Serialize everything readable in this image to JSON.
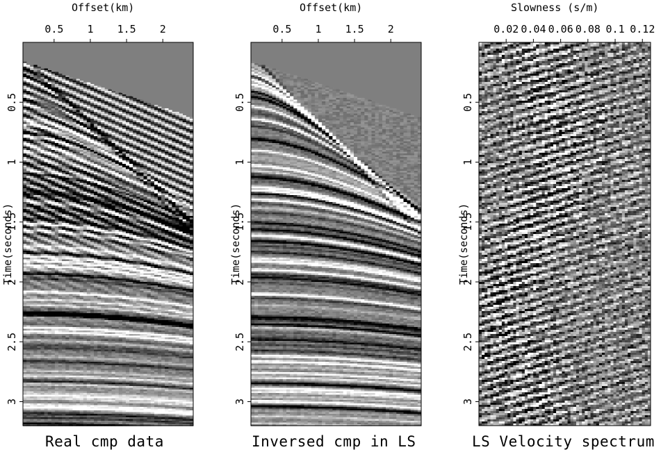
{
  "chart_data": [
    {
      "type": "heatmap",
      "title": "Real cmp data",
      "xlabel": "Offset(km)",
      "ylabel": "Time(seconds)",
      "x_ticks": [
        "0.5",
        "1",
        "1.5",
        "2"
      ],
      "x_tick_values": [
        0.5,
        1,
        1.5,
        2
      ],
      "y_ticks": [
        "0.5",
        "1",
        "1.5",
        "2",
        "2.5",
        "3"
      ],
      "y_tick_values": [
        0.5,
        1,
        1.5,
        2,
        2.5,
        3
      ],
      "xlim": [
        0.07,
        2.42
      ],
      "ylim": [
        0.0,
        3.2
      ],
      "colormap": "grayscale seismic wiggle-density",
      "first_arrival": {
        "x": [
          0.07,
          2.42
        ],
        "t": [
          0.15,
          0.62
        ]
      }
    },
    {
      "type": "heatmap",
      "title": "Inversed cmp in LS",
      "xlabel": "Offset(km)",
      "ylabel": "Time(seconds)",
      "x_ticks": [
        "0.5",
        "1",
        "1.5",
        "2"
      ],
      "x_tick_values": [
        0.5,
        1,
        1.5,
        2
      ],
      "y_ticks": [
        "0.5",
        "1",
        "1.5",
        "2",
        "2.5",
        "3"
      ],
      "y_tick_values": [
        0.5,
        1,
        1.5,
        2,
        2.5,
        3
      ],
      "xlim": [
        0.07,
        2.42
      ],
      "ylim": [
        0.0,
        3.2
      ],
      "colormap": "grayscale seismic wiggle-density",
      "first_arrival": {
        "x": [
          0.07,
          2.42
        ],
        "t": [
          0.15,
          0.62
        ]
      }
    },
    {
      "type": "heatmap",
      "title": "LS Velocity spectrum",
      "xlabel": "Slowness (s/m)",
      "ylabel": "Time(seconds)",
      "x_ticks": [
        "0.02",
        "0.04",
        "0.06",
        "0.08",
        "0.1",
        "0.12"
      ],
      "x_tick_values": [
        0.02,
        0.04,
        0.06,
        0.08,
        0.1,
        0.12
      ],
      "y_ticks": [
        "0.5",
        "1",
        "1.5",
        "2",
        "2.5",
        "3"
      ],
      "y_tick_values": [
        0.5,
        1,
        1.5,
        2,
        2.5,
        3
      ],
      "xlim": [
        0.0,
        0.126
      ],
      "ylim": [
        0.0,
        3.2
      ],
      "colormap": "grayscale seismic"
    }
  ]
}
